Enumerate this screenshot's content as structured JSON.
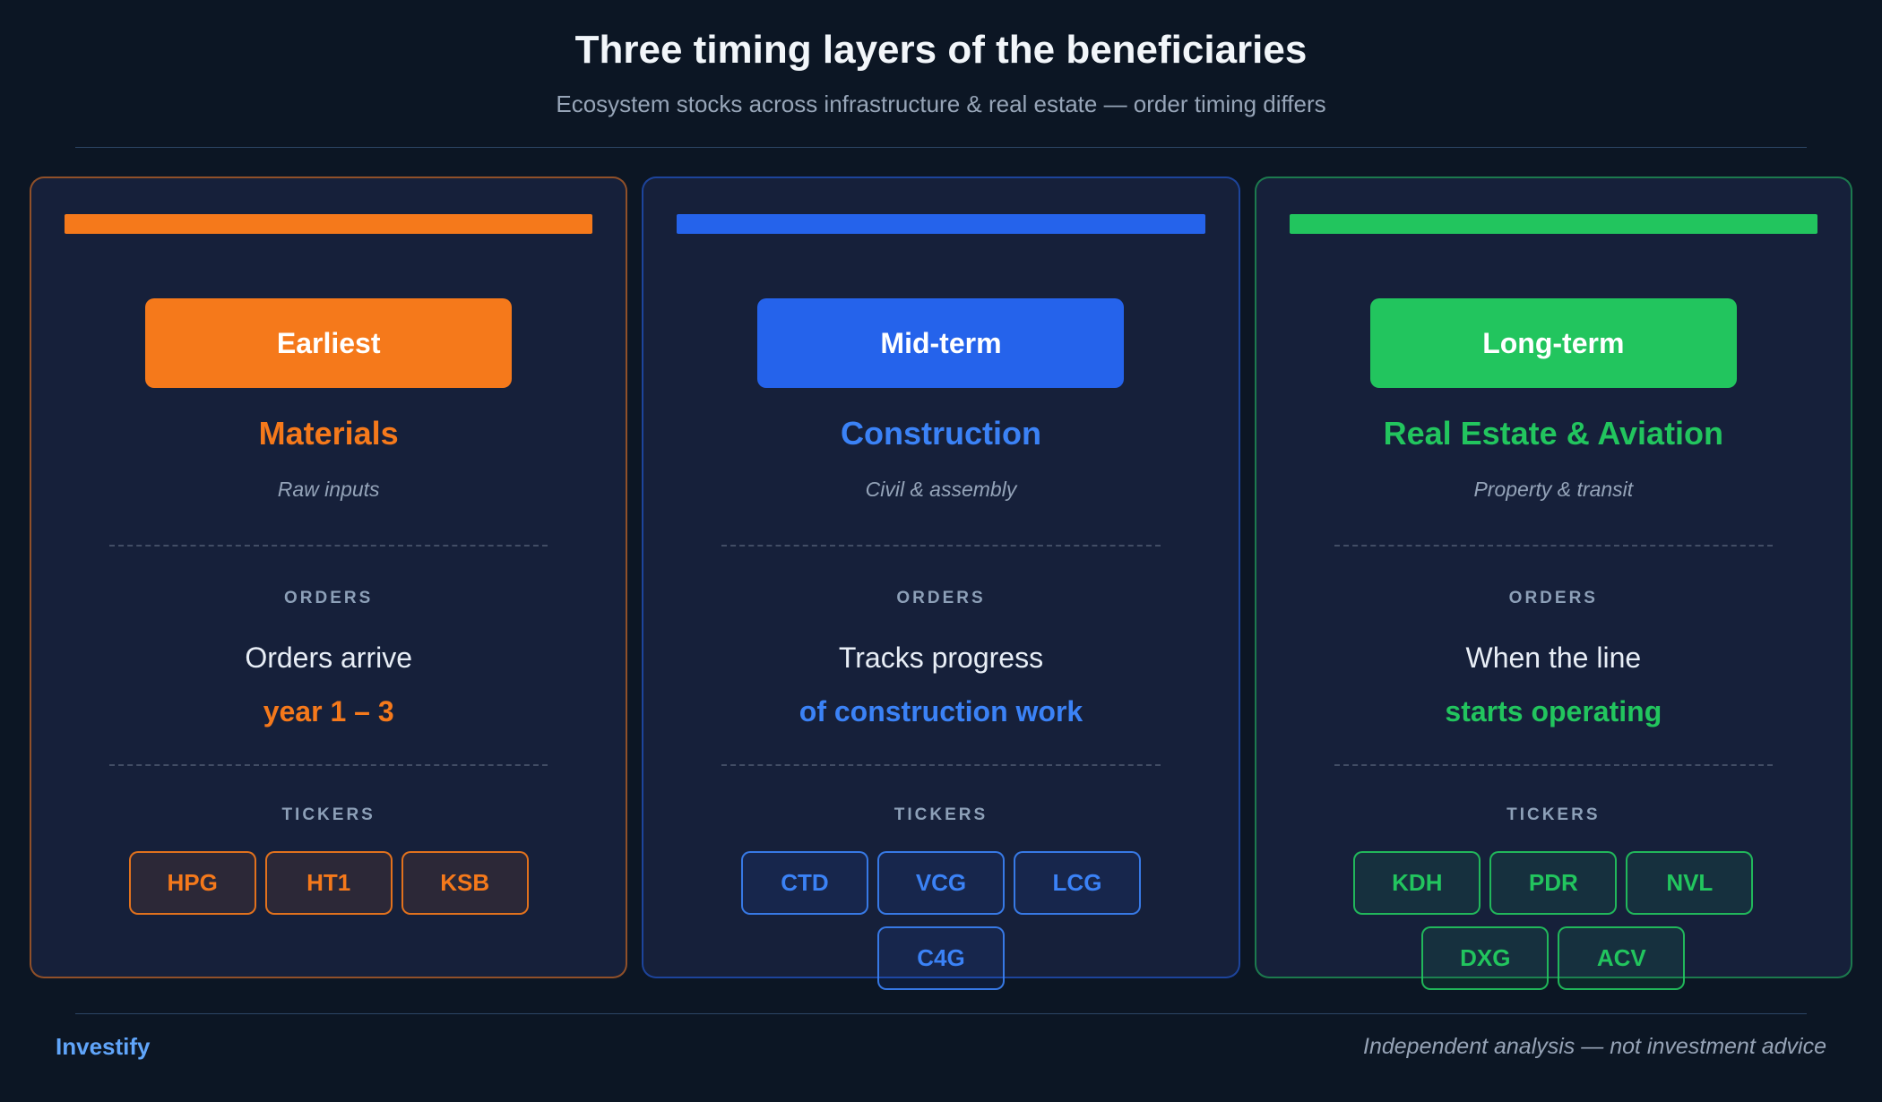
{
  "page": {
    "title": "Three timing layers of the beneficiaries",
    "subtitle": "Ecosystem stocks across infrastructure & real estate — order timing differs",
    "background_color": "#0c1624",
    "card_background_color": "#16203a"
  },
  "cards": [
    {
      "id": "materials",
      "accent": "#f5791b",
      "accent_text": "#f5791b",
      "badge": "Earliest",
      "sector": "Materials",
      "descriptor": "Raw inputs",
      "orders_label": "ORDERS",
      "orders_line1": "Orders arrive",
      "orders_line2": "year 1 – 3",
      "tickers_label": "TICKERS",
      "tickers": [
        "HPG",
        "HT1",
        "KSB"
      ]
    },
    {
      "id": "construction",
      "accent": "#2563eb",
      "accent_text": "#3b82f6",
      "badge": "Mid-term",
      "sector": "Construction",
      "descriptor": "Civil & assembly",
      "orders_label": "ORDERS",
      "orders_line1": "Tracks progress",
      "orders_line2": "of construction work",
      "tickers_label": "TICKERS",
      "tickers": [
        "CTD",
        "VCG",
        "LCG",
        "C4G"
      ]
    },
    {
      "id": "real-estate-aviation",
      "accent": "#22c55e",
      "accent_text": "#2bc returns5e",
      "badge": "Long-term",
      "sector": "Real Estate & Aviation",
      "descriptor": "Property & transit",
      "orders_label": "ORDERS",
      "orders_line1": "When the line",
      "orders_line2": "starts operating",
      "tickers_label": "TICKERS",
      "tickers": [
        "KDH",
        "PDR",
        "NVL",
        "DXG",
        "ACV"
      ]
    }
  ],
  "footer": {
    "brand": "Investify",
    "brand_color": "#60a5fa",
    "disclaimer": "Independent analysis — not investment advice"
  }
}
